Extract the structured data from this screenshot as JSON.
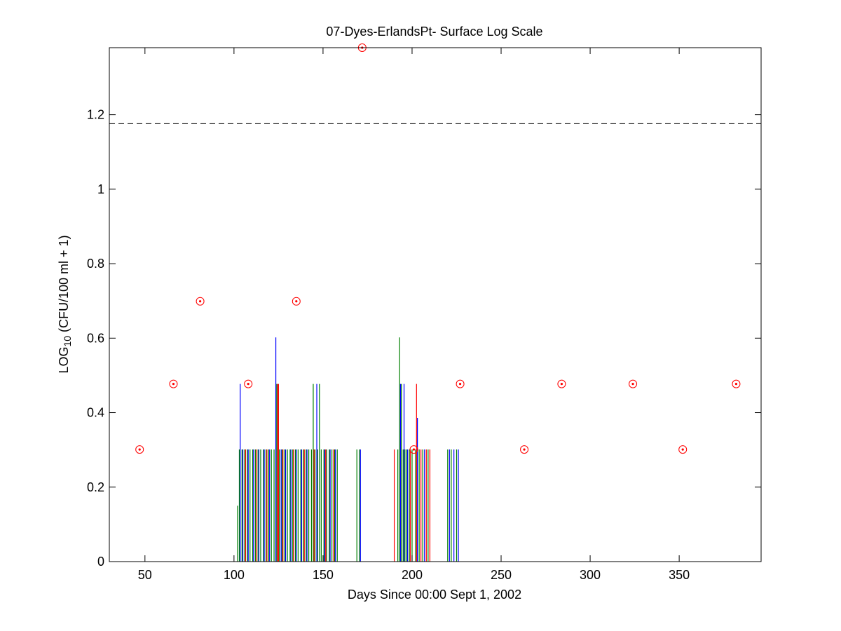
{
  "chart_data": {
    "type": "scatter",
    "title": "07-Dyes-ErlandsPt- Surface Log Scale",
    "xlabel": "Days Since 00:00 Sept 1, 2002",
    "ylabel": {
      "prefix": "LOG",
      "subscript": "10",
      "suffix": " (CFU/100 ml + 1)"
    },
    "xlim": [
      30,
      396
    ],
    "ylim": [
      0,
      1.38
    ],
    "x_ticks": [
      50,
      100,
      150,
      200,
      250,
      300,
      350
    ],
    "y_ticks": [
      0,
      0.2,
      0.4,
      0.6,
      0.8,
      1,
      1.2
    ],
    "x_tick_labels": [
      "50",
      "100",
      "150",
      "200",
      "250",
      "300",
      "350"
    ],
    "y_tick_labels": [
      "0",
      "0.2",
      "0.4",
      "0.6",
      "0.8",
      "1",
      "1.2"
    ],
    "grid": false,
    "reference_line": {
      "y": 1.176,
      "style": "dashed",
      "color": "#000000"
    },
    "series": [
      {
        "type": "scatter",
        "marker": "circle-dot",
        "color": "#ff0000",
        "points": [
          [
            47,
            0.301
          ],
          [
            66,
            0.477
          ],
          [
            81,
            0.699
          ],
          [
            108,
            0.477
          ],
          [
            135,
            0.699
          ],
          [
            172,
            1.38
          ],
          [
            201,
            0.301
          ],
          [
            227,
            0.477
          ],
          [
            263,
            0.301
          ],
          [
            284,
            0.477
          ],
          [
            324,
            0.477
          ],
          [
            352,
            0.301
          ],
          [
            382,
            0.477
          ]
        ]
      },
      {
        "type": "stems",
        "color": "#008000",
        "points": [
          [
            102,
            0.15
          ],
          [
            103,
            0.301
          ],
          [
            104.5,
            0.301
          ],
          [
            106,
            0.301
          ],
          [
            107.5,
            0.301
          ],
          [
            109,
            0.301
          ],
          [
            110.5,
            0.301
          ],
          [
            112,
            0.301
          ],
          [
            113.5,
            0.301
          ],
          [
            115,
            0.301
          ],
          [
            116.5,
            0.301
          ],
          [
            118,
            0.301
          ],
          [
            119.5,
            0.301
          ],
          [
            121,
            0.301
          ],
          [
            122.5,
            0.301
          ],
          [
            124,
            0.477
          ],
          [
            125.5,
            0.301
          ],
          [
            127,
            0.301
          ],
          [
            128.5,
            0.301
          ],
          [
            130,
            0.301
          ],
          [
            131.5,
            0.301
          ],
          [
            133,
            0.301
          ],
          [
            134.5,
            0.301
          ],
          [
            136,
            0.301
          ],
          [
            137.5,
            0.301
          ],
          [
            139,
            0.301
          ],
          [
            140.5,
            0.301
          ],
          [
            142,
            0.301
          ],
          [
            143.5,
            0.301
          ],
          [
            144.5,
            0.477
          ],
          [
            145.5,
            0.301
          ],
          [
            147,
            0.301
          ],
          [
            148,
            0.477
          ],
          [
            149,
            0.301
          ],
          [
            150.5,
            0.301
          ],
          [
            152,
            0.301
          ],
          [
            153.5,
            0.301
          ],
          [
            155,
            0.301
          ],
          [
            156.5,
            0.301
          ],
          [
            158,
            0.301
          ],
          [
            169,
            0.301
          ],
          [
            170.5,
            0.301
          ],
          [
            192,
            0.301
          ],
          [
            193,
            0.602
          ],
          [
            194,
            0.477
          ],
          [
            195,
            0.301
          ],
          [
            196,
            0.301
          ],
          [
            197,
            0.301
          ],
          [
            198.5,
            0.301
          ],
          [
            200,
            0.301
          ],
          [
            202,
            0.301
          ],
          [
            204,
            0.301
          ],
          [
            206,
            0.301
          ],
          [
            209,
            0.301
          ],
          [
            220,
            0.301
          ],
          [
            222,
            0.301
          ],
          [
            225,
            0.301
          ]
        ]
      },
      {
        "type": "stems",
        "color": "#0000ff",
        "points": [
          [
            103.5,
            0.477
          ],
          [
            105,
            0.301
          ],
          [
            108,
            0.301
          ],
          [
            111,
            0.301
          ],
          [
            114,
            0.301
          ],
          [
            117,
            0.301
          ],
          [
            120,
            0.301
          ],
          [
            123.5,
            0.602
          ],
          [
            126.5,
            0.301
          ],
          [
            129,
            0.301
          ],
          [
            132,
            0.301
          ],
          [
            135,
            0.301
          ],
          [
            138,
            0.301
          ],
          [
            141,
            0.301
          ],
          [
            146.5,
            0.477
          ],
          [
            151,
            0.301
          ],
          [
            154,
            0.301
          ],
          [
            157,
            0.301
          ],
          [
            171,
            0.301
          ],
          [
            193.5,
            0.477
          ],
          [
            195.5,
            0.477
          ],
          [
            197.5,
            0.301
          ],
          [
            203,
            0.386
          ],
          [
            207,
            0.301
          ],
          [
            221,
            0.301
          ],
          [
            223.5,
            0.301
          ],
          [
            226,
            0.301
          ]
        ]
      },
      {
        "type": "stems",
        "color": "#ff0000",
        "points": [
          [
            106.5,
            0.301
          ],
          [
            112.5,
            0.301
          ],
          [
            118.5,
            0.301
          ],
          [
            124.5,
            0.477
          ],
          [
            125,
            0.477
          ],
          [
            127.5,
            0.301
          ],
          [
            133.5,
            0.301
          ],
          [
            139.5,
            0.301
          ],
          [
            145,
            0.301
          ],
          [
            151.5,
            0.301
          ],
          [
            156,
            0.301
          ],
          [
            190,
            0.301
          ],
          [
            199,
            0.301
          ],
          [
            202.5,
            0.477
          ],
          [
            205,
            0.301
          ],
          [
            208,
            0.301
          ],
          [
            210,
            0.301
          ]
        ]
      }
    ]
  }
}
